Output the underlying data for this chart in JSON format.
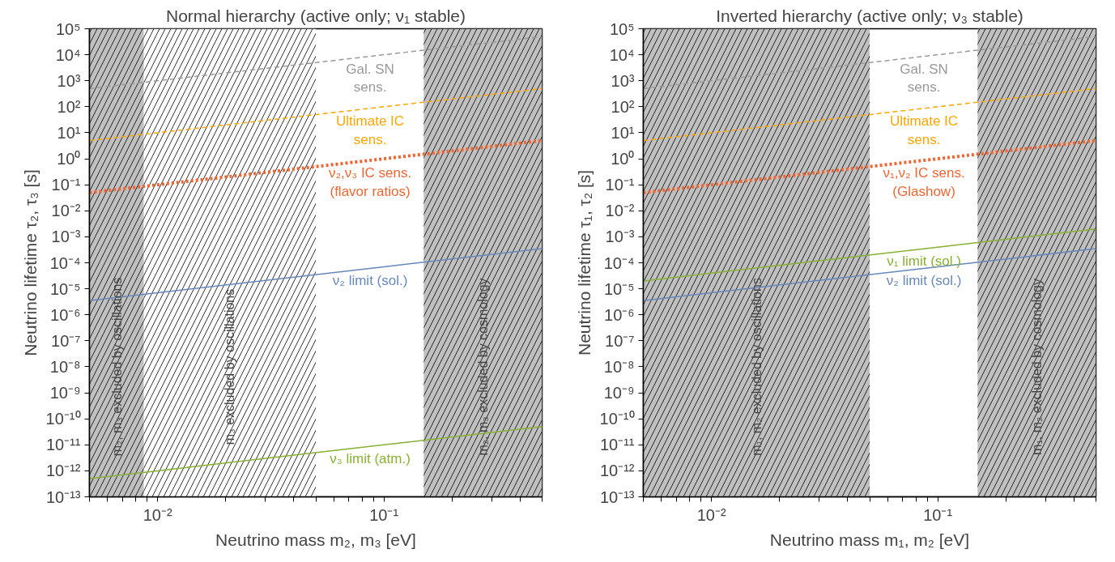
{
  "chart_data": [
    {
      "type": "line",
      "title": "Normal hierarchy (active only; ν₁ stable)",
      "xlabel": "Neutrino mass m₂, m₃ [eV]",
      "ylabel": "Neutrino lifetime τ₂, τ₃ [s]",
      "log": "xy",
      "grid": false,
      "xlim": [
        0.005,
        0.5
      ],
      "ylim": [
        1e-13,
        100000
      ],
      "xticks": [
        {
          "value": 0.005,
          "label": null
        },
        {
          "value": 0.006,
          "label": null
        },
        {
          "value": 0.007,
          "label": null
        },
        {
          "value": 0.008,
          "label": null
        },
        {
          "value": 0.009,
          "label": null
        },
        {
          "value": 0.01,
          "label": "10⁻²"
        },
        {
          "value": 0.02,
          "label": null
        },
        {
          "value": 0.03,
          "label": null
        },
        {
          "value": 0.04,
          "label": null
        },
        {
          "value": 0.05,
          "label": null
        },
        {
          "value": 0.06,
          "label": null
        },
        {
          "value": 0.07,
          "label": null
        },
        {
          "value": 0.08,
          "label": null
        },
        {
          "value": 0.09,
          "label": null
        },
        {
          "value": 0.1,
          "label": "10⁻¹"
        },
        {
          "value": 0.2,
          "label": null
        },
        {
          "value": 0.3,
          "label": null
        },
        {
          "value": 0.4,
          "label": null
        },
        {
          "value": 0.5,
          "label": null
        }
      ],
      "yticks": [
        {
          "value": 1e-13,
          "label": "10⁻¹³"
        },
        {
          "value": 1e-12,
          "label": "10⁻¹²"
        },
        {
          "value": 1e-11,
          "label": "10⁻¹¹"
        },
        {
          "value": 1e-10,
          "label": "10⁻¹⁰"
        },
        {
          "value": 1e-09,
          "label": "10⁻⁹"
        },
        {
          "value": 1e-08,
          "label": "10⁻⁸"
        },
        {
          "value": 1e-07,
          "label": "10⁻⁷"
        },
        {
          "value": 1e-06,
          "label": "10⁻⁶"
        },
        {
          "value": 1e-05,
          "label": "10⁻⁵"
        },
        {
          "value": 0.0001,
          "label": "10⁻⁴"
        },
        {
          "value": 0.001,
          "label": "10⁻³"
        },
        {
          "value": 0.01,
          "label": "10⁻²"
        },
        {
          "value": 0.1,
          "label": "10⁻¹"
        },
        {
          "value": 1,
          "label": "10⁰"
        },
        {
          "value": 10,
          "label": "10¹"
        },
        {
          "value": 100,
          "label": "10²"
        },
        {
          "value": 1000,
          "label": "10³"
        },
        {
          "value": 10000,
          "label": "10⁴"
        },
        {
          "value": 100000,
          "label": "10⁵"
        }
      ],
      "x": [
        0.005,
        0.01,
        0.1,
        0.5
      ],
      "series": [
        {
          "color": "#999999",
          "line_style": "dashed",
          "values": [
            500,
            1000,
            10000,
            50000
          ]
        },
        {
          "color": "#ffa500",
          "line_style": "dashed",
          "values": [
            5,
            10,
            100,
            500
          ]
        },
        {
          "color": "#ee6633",
          "line_style": "dotted",
          "values": [
            0.05,
            0.1,
            1,
            5
          ]
        },
        {
          "color": "#6688bb",
          "line_style": "solid",
          "values": [
            3.5e-06,
            7e-06,
            7e-05,
            0.00035
          ]
        },
        {
          "color": "#88b033",
          "line_style": "solid",
          "values": [
            5e-13,
            1e-12,
            1e-11,
            5e-11
          ]
        }
      ],
      "annotations": [
        "Gal. SN\nsens.",
        "Ultimate IC\nsens.",
        "ν₂,ν₃ IC sens.\n(flavor ratios)",
        "ν₂ limit (sol.)",
        "ν₃ limit (atm.)"
      ],
      "bands": [
        {
          "axis": "x",
          "from": 0.005,
          "to": 0.0087,
          "label": "m₂, m₃ excluded by oscillations",
          "color": "#c0c0c0"
        },
        {
          "axis": "x",
          "from": 0.0087,
          "to": 0.05,
          "label": "m₃ excluded by oscillations",
          "color": "#ffffff"
        },
        {
          "axis": "x",
          "from": 0.15,
          "to": 0.5,
          "label": "m₂, m₃ excluded by cosmology",
          "color": "#c0c0c0"
        }
      ]
    },
    {
      "type": "line",
      "title": "Inverted hierarchy (active only; ν₃ stable)",
      "xlabel": "Neutrino mass m₁, m₂ [eV]",
      "ylabel": "Neutrino lifetime τ₁, τ₂ [s]",
      "log": "xy",
      "grid": false,
      "xlim": [
        0.005,
        0.5
      ],
      "ylim": [
        1e-13,
        100000
      ],
      "xticks": [
        {
          "value": 0.005,
          "label": null
        },
        {
          "value": 0.006,
          "label": null
        },
        {
          "value": 0.007,
          "label": null
        },
        {
          "value": 0.008,
          "label": null
        },
        {
          "value": 0.009,
          "label": null
        },
        {
          "value": 0.01,
          "label": "10⁻²"
        },
        {
          "value": 0.02,
          "label": null
        },
        {
          "value": 0.03,
          "label": null
        },
        {
          "value": 0.04,
          "label": null
        },
        {
          "value": 0.05,
          "label": null
        },
        {
          "value": 0.06,
          "label": null
        },
        {
          "value": 0.07,
          "label": null
        },
        {
          "value": 0.08,
          "label": null
        },
        {
          "value": 0.09,
          "label": null
        },
        {
          "value": 0.1,
          "label": "10⁻¹"
        },
        {
          "value": 0.2,
          "label": null
        },
        {
          "value": 0.3,
          "label": null
        },
        {
          "value": 0.4,
          "label": null
        },
        {
          "value": 0.5,
          "label": null
        }
      ],
      "yticks": [
        {
          "value": 1e-13,
          "label": "10⁻¹³"
        },
        {
          "value": 1e-12,
          "label": "10⁻¹²"
        },
        {
          "value": 1e-11,
          "label": "10⁻¹¹"
        },
        {
          "value": 1e-10,
          "label": "10⁻¹⁰"
        },
        {
          "value": 1e-09,
          "label": "10⁻⁹"
        },
        {
          "value": 1e-08,
          "label": "10⁻⁸"
        },
        {
          "value": 1e-07,
          "label": "10⁻⁷"
        },
        {
          "value": 1e-06,
          "label": "10⁻⁶"
        },
        {
          "value": 1e-05,
          "label": "10⁻⁵"
        },
        {
          "value": 0.0001,
          "label": "10⁻⁴"
        },
        {
          "value": 0.001,
          "label": "10⁻³"
        },
        {
          "value": 0.01,
          "label": "10⁻²"
        },
        {
          "value": 0.1,
          "label": "10⁻¹"
        },
        {
          "value": 1,
          "label": "10⁰"
        },
        {
          "value": 10,
          "label": "10¹"
        },
        {
          "value": 100,
          "label": "10²"
        },
        {
          "value": 1000,
          "label": "10³"
        },
        {
          "value": 10000,
          "label": "10⁴"
        },
        {
          "value": 100000,
          "label": "10⁵"
        }
      ],
      "x": [
        0.005,
        0.01,
        0.1,
        0.5
      ],
      "series": [
        {
          "color": "#999999",
          "line_style": "dashed",
          "values": [
            500,
            1000,
            10000,
            50000
          ]
        },
        {
          "color": "#ffa500",
          "line_style": "dashed",
          "values": [
            5,
            10,
            100,
            500
          ]
        },
        {
          "color": "#ee6633",
          "line_style": "dotted",
          "values": [
            0.05,
            0.1,
            1,
            5
          ]
        },
        {
          "color": "#88b033",
          "line_style": "solid",
          "values": [
            2e-05,
            4e-05,
            0.0004,
            0.002
          ]
        },
        {
          "color": "#6688bb",
          "line_style": "solid",
          "values": [
            3.5e-06,
            7e-06,
            7e-05,
            0.00035
          ]
        }
      ],
      "annotations": [
        "Gal. SN\nsens.",
        "Ultimate IC\nsens.",
        "ν₁,ν₂ IC sens.\n(Glashow)",
        "ν₁ limit (sol.)",
        "ν₂ limit (sol.)"
      ],
      "bands": [
        {
          "axis": "x",
          "from": 0.005,
          "to": 0.05,
          "label": "m₁, m₂ excluded by oscillations",
          "color": "#c0c0c0"
        },
        {
          "axis": "x",
          "from": 0.15,
          "to": 0.5,
          "label": "m₁, m₂ excluded by cosmology",
          "color": "#c0c0c0"
        }
      ]
    }
  ]
}
